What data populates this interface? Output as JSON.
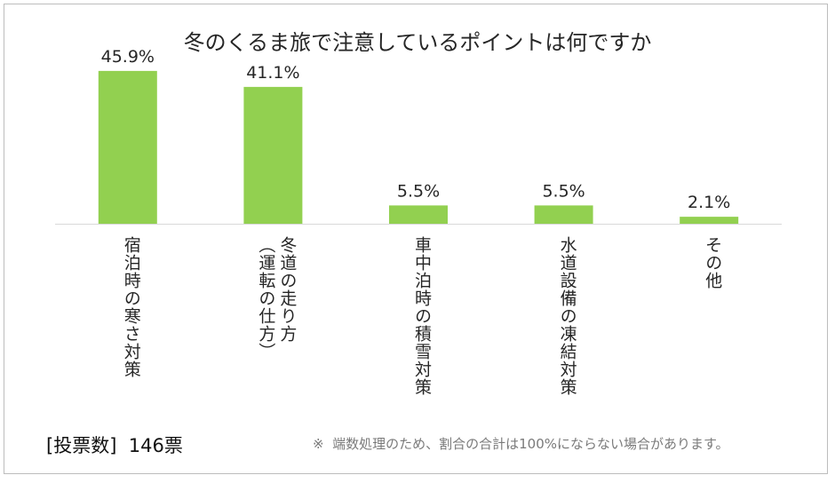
{
  "chart_data": {
    "type": "bar",
    "title": "冬のくるま旅で注意しているポイントは何ですか",
    "categories": [
      "宿泊時の寒さ対策",
      "冬道の走り方（運転の仕方）",
      "車中泊時の積雪対策",
      "水道設備の凍結対策",
      "その他"
    ],
    "category_lines": [
      [
        "宿泊時の寒さ対策"
      ],
      [
        "冬道の走り方",
        "（運転の仕方）"
      ],
      [
        "車中泊時の積雪対策"
      ],
      [
        "水道設備の凍結対策"
      ],
      [
        "その他"
      ]
    ],
    "values": [
      45.9,
      41.1,
      5.5,
      5.5,
      2.1
    ],
    "value_labels": [
      "45.9%",
      "41.1%",
      "5.5%",
      "5.5%",
      "2.1%"
    ],
    "unit": "%",
    "ylim": [
      0,
      48
    ],
    "bar_color": "#92d050",
    "axis_color": "#d9d9d9",
    "grid": false,
    "legend": "none"
  },
  "footer": {
    "votes": "[投票数]  146票",
    "note": "※  端数処理のため、割合の合計は100%にならない場合があります。"
  }
}
